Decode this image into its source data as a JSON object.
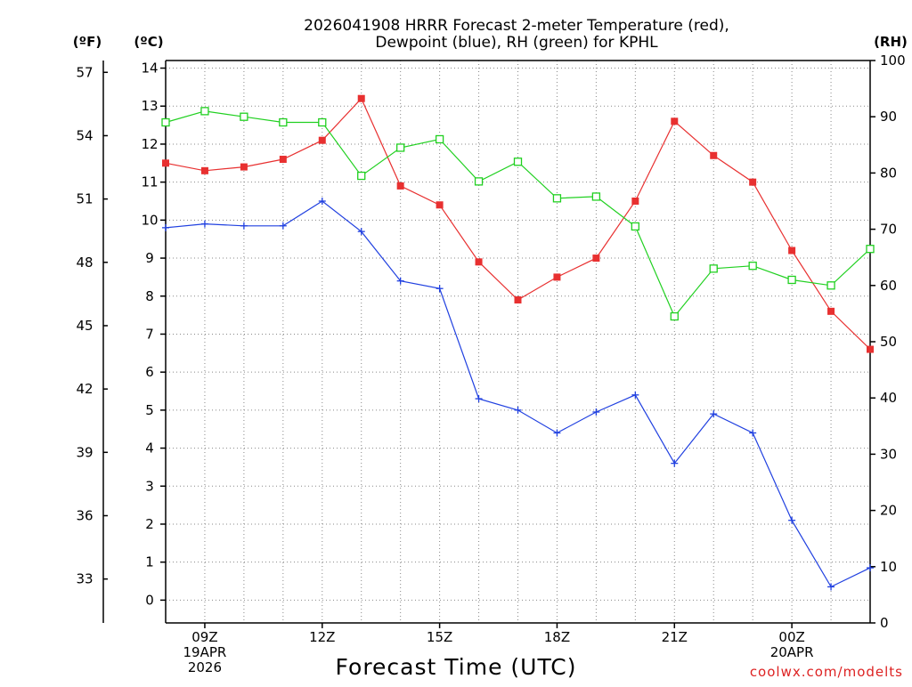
{
  "chart_data": {
    "type": "line",
    "title_line1": "2026041908 HRRR Forecast 2-meter Temperature (red),",
    "title_line2": "Dewpoint (blue), RH (green) for KPHL",
    "xlabel": "Forecast Time (UTC)",
    "credit": "coolwx.com/modelts",
    "units": {
      "f": "(ºF)",
      "c": "(ºC)",
      "rh": "(RH)"
    },
    "x_range_hours": [
      8,
      26
    ],
    "c_range": [
      -0.6,
      14.2
    ],
    "rh_range": [
      0,
      100
    ],
    "c_ticks": [
      "0",
      "1",
      "2",
      "3",
      "4",
      "5",
      "6",
      "7",
      "8",
      "9",
      "10",
      "11",
      "12",
      "13",
      "14"
    ],
    "f_ticks": [
      {
        "v": 33,
        "label": "33"
      },
      {
        "v": 36,
        "label": "36"
      },
      {
        "v": 39,
        "label": "39"
      },
      {
        "v": 42,
        "label": "42"
      },
      {
        "v": 45,
        "label": "45"
      },
      {
        "v": 48,
        "label": "48"
      },
      {
        "v": 51,
        "label": "51"
      },
      {
        "v": 54,
        "label": "54"
      },
      {
        "v": 57,
        "label": "57"
      }
    ],
    "rh_ticks": [
      "0",
      "10",
      "20",
      "30",
      "40",
      "50",
      "60",
      "70",
      "80",
      "90",
      "100"
    ],
    "x_ticks": [
      {
        "h": 9,
        "lines": [
          "09Z",
          "19APR",
          "2026"
        ]
      },
      {
        "h": 12,
        "lines": [
          "12Z"
        ]
      },
      {
        "h": 15,
        "lines": [
          "15Z"
        ]
      },
      {
        "h": 18,
        "lines": [
          "18Z"
        ]
      },
      {
        "h": 21,
        "lines": [
          "21Z"
        ]
      },
      {
        "h": 24,
        "lines": [
          "00Z",
          "20APR"
        ]
      }
    ],
    "hours": [
      8,
      9,
      10,
      11,
      12,
      13,
      14,
      15,
      16,
      17,
      18,
      19,
      20,
      21,
      22,
      23,
      24,
      25,
      26
    ],
    "series": [
      {
        "name": "Temperature",
        "units": "C",
        "color": "#e83030",
        "marker": "filled-square",
        "values": [
          11.5,
          11.3,
          11.4,
          11.6,
          12.1,
          13.2,
          10.9,
          10.4,
          8.9,
          7.9,
          8.5,
          9.0,
          10.5,
          12.6,
          11.7,
          11.0,
          9.2,
          7.6,
          6.6
        ]
      },
      {
        "name": "Dewpoint",
        "units": "C",
        "color": "#2040e0",
        "marker": "plus",
        "values": [
          9.8,
          9.9,
          9.85,
          9.85,
          10.5,
          9.7,
          8.4,
          8.2,
          5.3,
          5.0,
          4.4,
          4.95,
          5.4,
          3.6,
          4.9,
          4.4,
          2.1,
          0.35,
          0.85
        ]
      },
      {
        "name": "RH",
        "units": "%",
        "color": "#20d020",
        "marker": "open-square",
        "values": [
          89,
          91,
          90,
          89,
          89,
          79.5,
          84.5,
          86,
          78.5,
          82,
          75.5,
          75.8,
          70.5,
          54.5,
          63,
          63.5,
          61,
          60,
          66.5
        ]
      }
    ]
  }
}
